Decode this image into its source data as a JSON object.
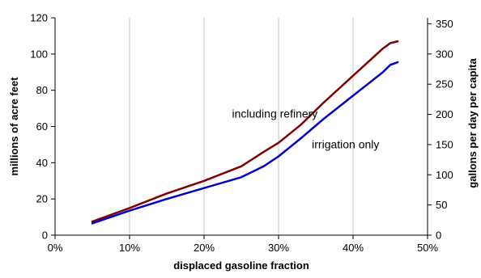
{
  "chart_data": {
    "type": "line",
    "xlabel": "displaced gasoline fraction",
    "ylabel": "millions of acre feet",
    "y2label": "gallons per day per capita",
    "xlim": [
      0,
      0.5
    ],
    "ylim": [
      0,
      120
    ],
    "y2lim": [
      0,
      360
    ],
    "x_ticks": [
      "0%",
      "10%",
      "20%",
      "30%",
      "40%",
      "50%"
    ],
    "y_ticks": [
      "0",
      "20",
      "40",
      "60",
      "80",
      "100",
      "120"
    ],
    "y2_ticks": [
      "0",
      "50",
      "100",
      "150",
      "200",
      "250",
      "300",
      "350"
    ],
    "grid": "vertical",
    "series": [
      {
        "color": "#800000",
        "x": [
          0.05,
          0.1,
          0.15,
          0.2,
          0.25,
          0.28,
          0.3,
          0.33,
          0.36,
          0.4,
          0.44,
          0.45,
          0.46
        ],
        "y": [
          7.5,
          15,
          23,
          30,
          38,
          46,
          51,
          61,
          73,
          88,
          103,
          106,
          107
        ]
      },
      {
        "color": "#0000cc",
        "x": [
          0.05,
          0.1,
          0.15,
          0.2,
          0.25,
          0.28,
          0.3,
          0.33,
          0.36,
          0.4,
          0.44,
          0.45,
          0.46
        ],
        "y": [
          6.5,
          13.5,
          20,
          26,
          32,
          38,
          43.5,
          53.5,
          64,
          77,
          90,
          94,
          95.5
        ]
      }
    ],
    "annotations": [
      {
        "text": "including refinery",
        "x": 0.295,
        "y": 65,
        "anchor": "middle"
      },
      {
        "text": "irrigation only",
        "x": 0.39,
        "y": 48,
        "anchor": "middle"
      }
    ]
  }
}
